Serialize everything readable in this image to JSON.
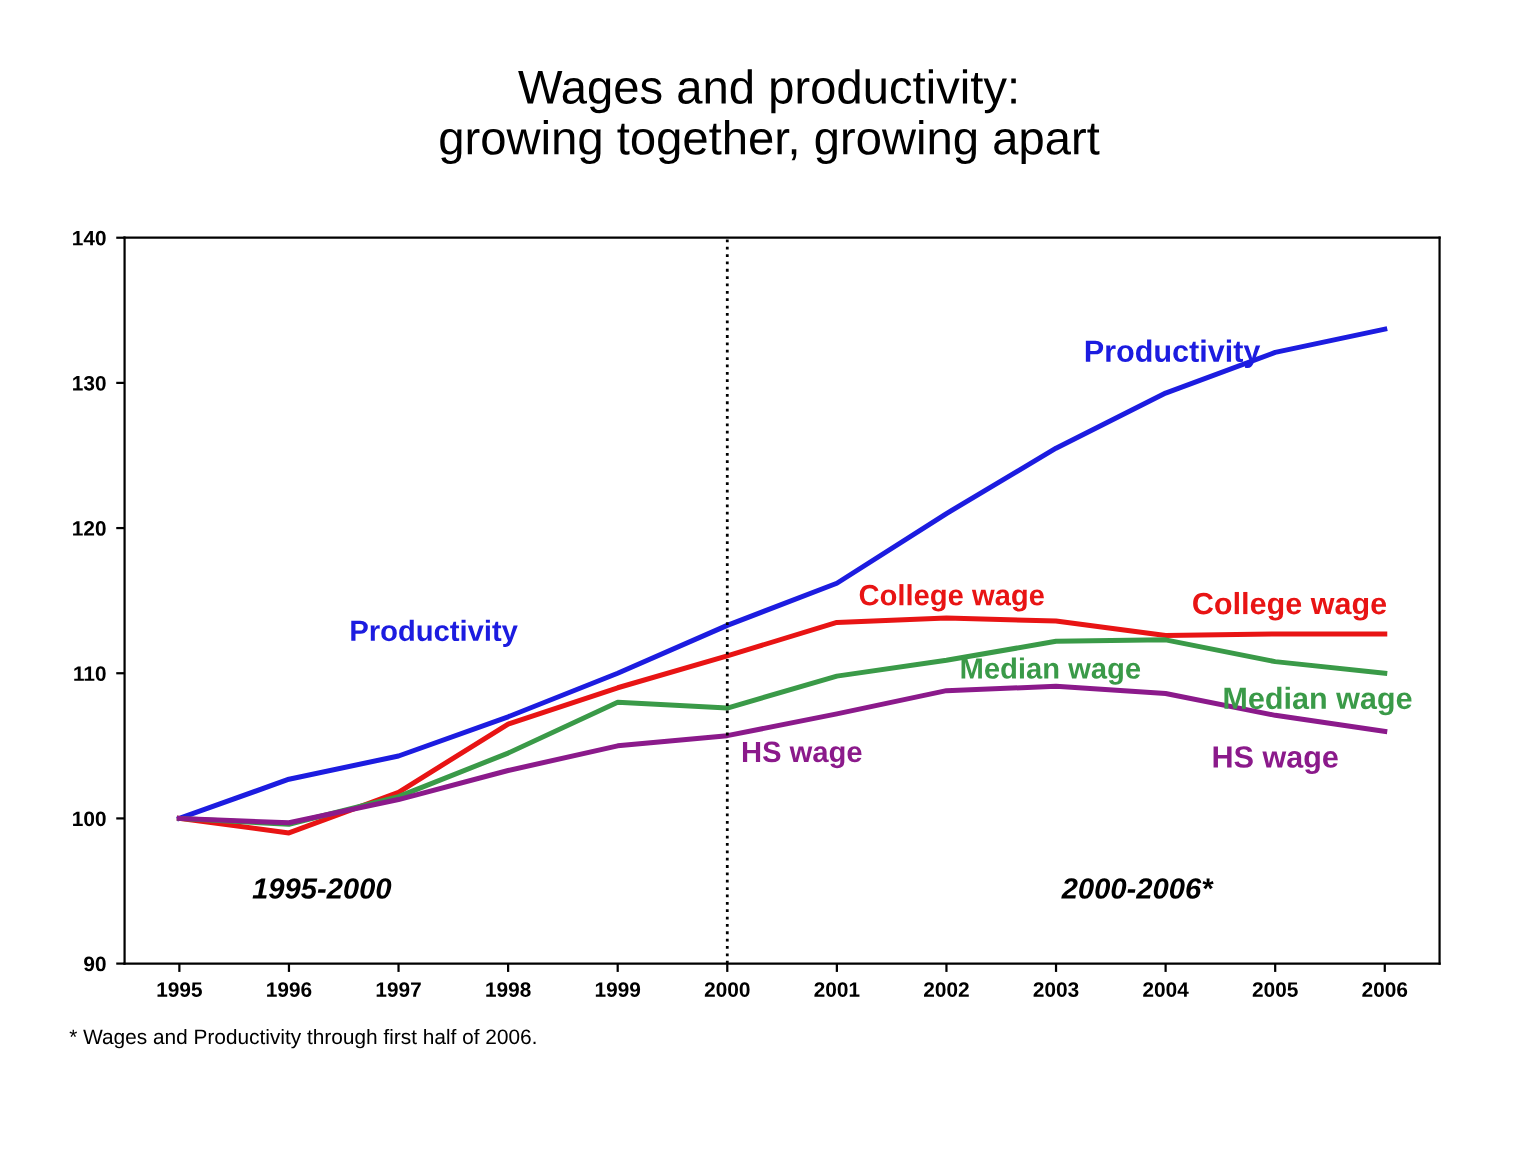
{
  "chart_data": {
    "type": "line",
    "title": "Wages and productivity:\ngrowing together, growing apart",
    "x": [
      1995,
      1996,
      1997,
      1998,
      1999,
      2000,
      2001,
      2002,
      2003,
      2004,
      2005,
      2006
    ],
    "xlim": [
      1994.5,
      2006.5
    ],
    "xticks": [
      1995,
      1996,
      1997,
      1998,
      1999,
      2000,
      2001,
      2002,
      2003,
      2004,
      2005,
      2006
    ],
    "ylim": [
      90,
      140
    ],
    "yticks": [
      90,
      100,
      110,
      120,
      130,
      140
    ],
    "grid": false,
    "legend": false,
    "marker": "none",
    "line_style": "solid",
    "series": [
      {
        "name": "Productivity",
        "color": "#1c1ce0",
        "values": [
          100,
          102.7,
          104.3,
          107,
          110,
          113.3,
          116.2,
          121,
          125.5,
          129.3,
          132.1,
          133.7
        ]
      },
      {
        "name": "College wage",
        "color": "#e81414",
        "values": [
          100,
          99,
          101.8,
          106.5,
          109,
          111.2,
          113.5,
          113.8,
          113.6,
          112.6,
          112.7,
          112.7
        ]
      },
      {
        "name": "Median wage",
        "color": "#3a9a48",
        "values": [
          100,
          99.6,
          101.5,
          104.5,
          108,
          107.6,
          109.8,
          110.9,
          112.2,
          112.3,
          110.8,
          110
        ]
      },
      {
        "name": "HS wage",
        "color": "#8b1a8b",
        "values": [
          100,
          99.7,
          101.3,
          103.3,
          105,
          105.7,
          107.2,
          108.8,
          109.1,
          108.6,
          107.1,
          106
        ]
      }
    ],
    "ref_lines": [
      {
        "axis": "x",
        "value": 2000,
        "color": "#000000",
        "line_style": "dotted"
      }
    ],
    "annotations": [
      "Productivity",
      "College wage",
      "Median wage",
      "HS wage",
      "1995-2000",
      "2000-2006*",
      "* Wages and Productivity through first half of 2006."
    ]
  }
}
